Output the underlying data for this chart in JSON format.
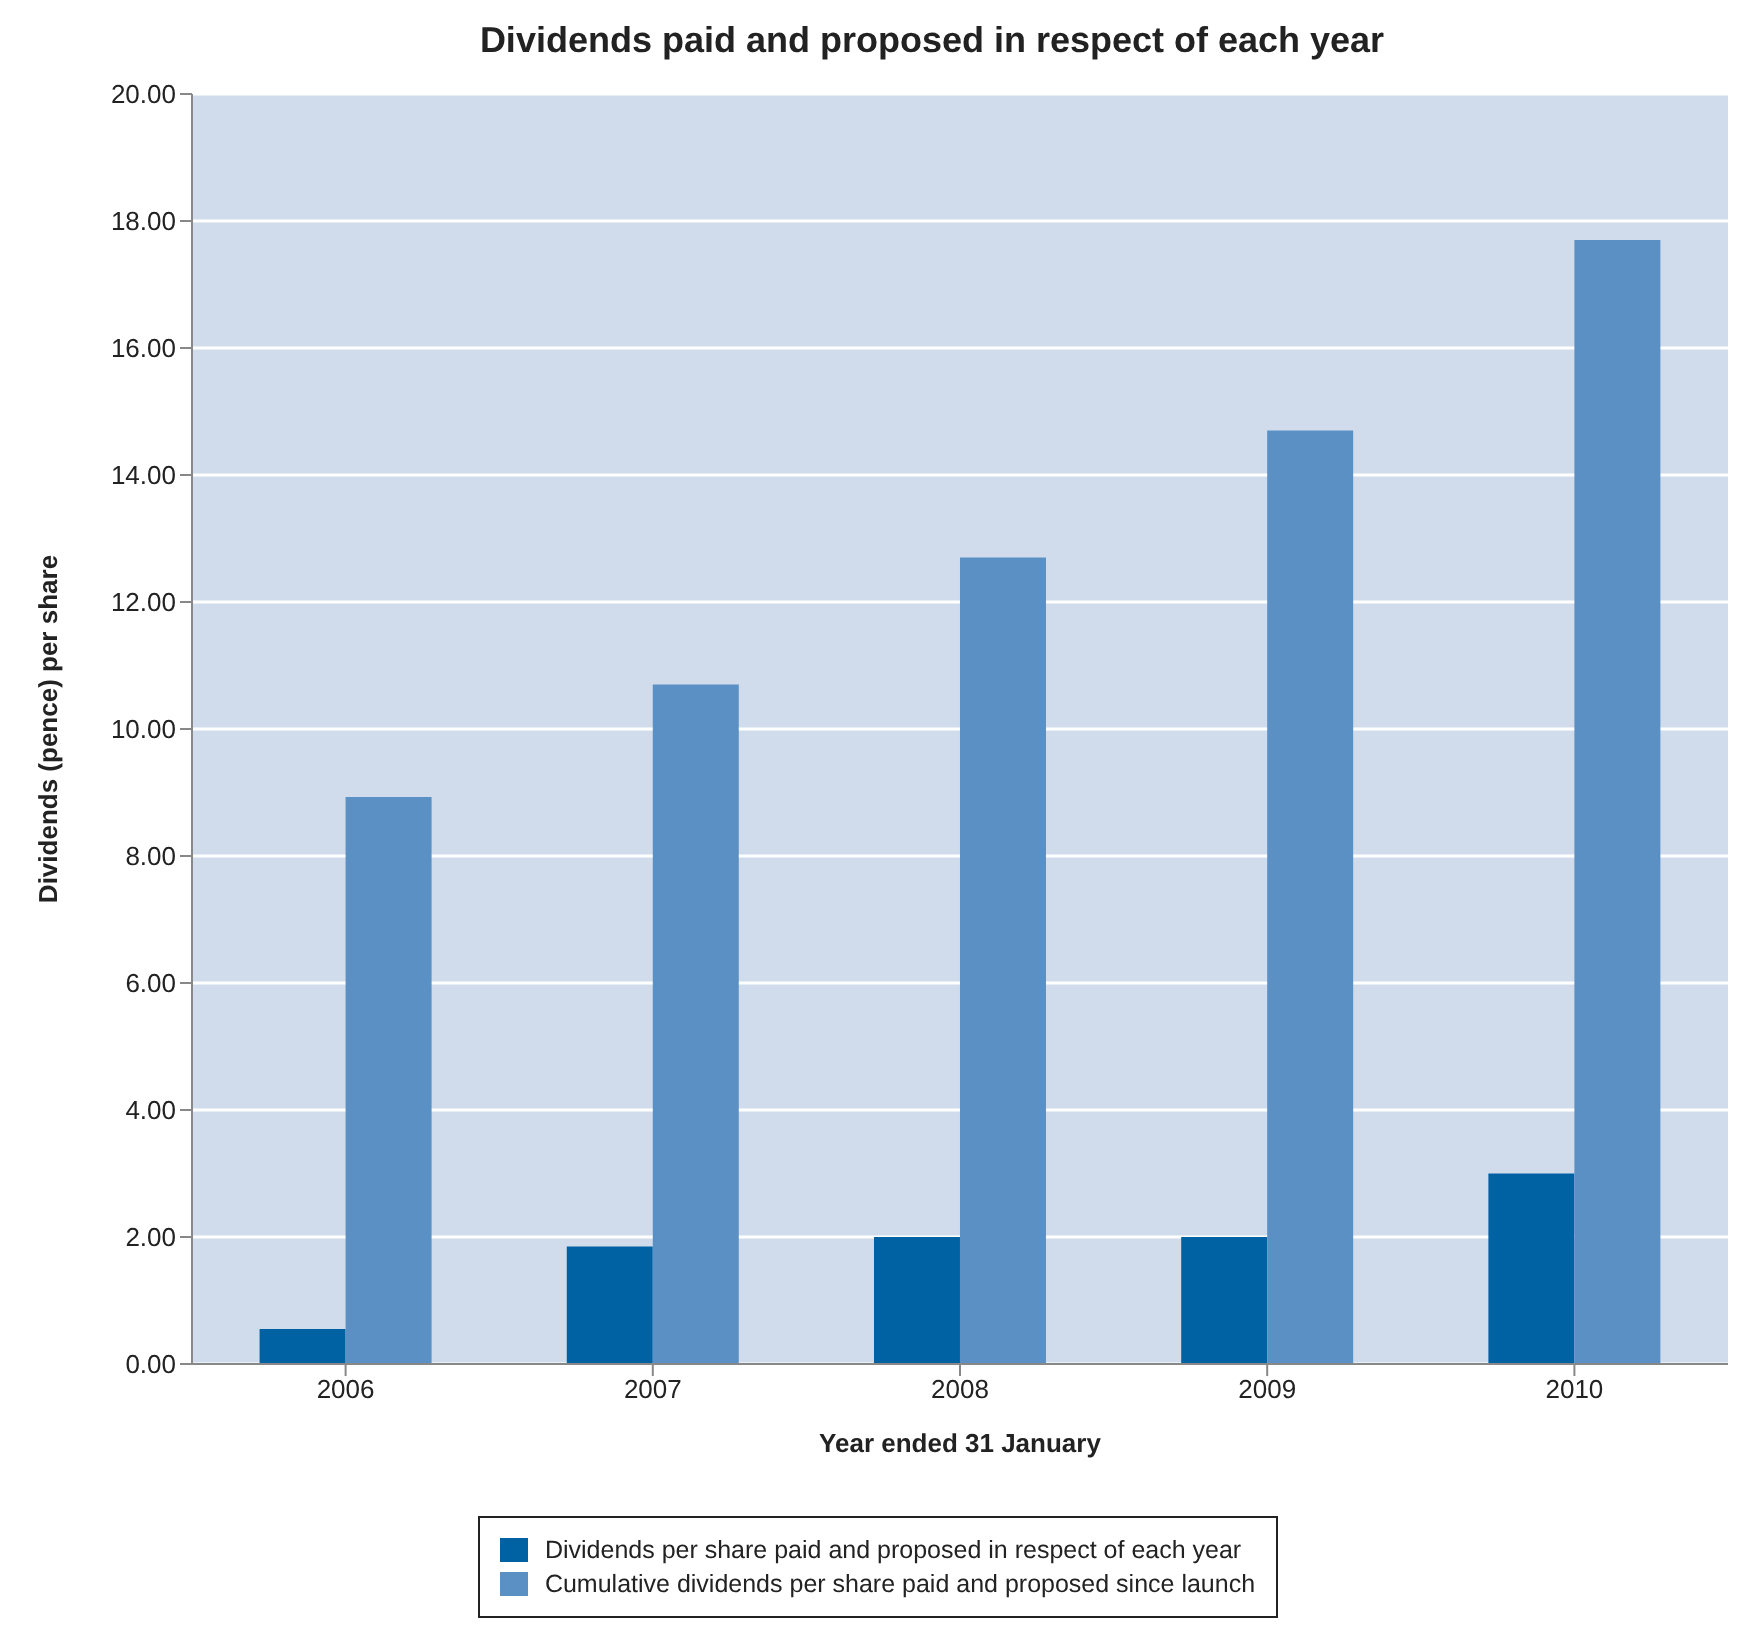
{
  "chart_data": {
    "type": "bar",
    "title": "Dividends paid and proposed in respect of each year",
    "xlabel": "Year ended 31 January",
    "ylabel": "Dividends (pence) per share",
    "categories": [
      "2006",
      "2007",
      "2008",
      "2009",
      "2010"
    ],
    "series": [
      {
        "name": "Dividends per share paid and proposed in respect of each year",
        "color": "#0062a3",
        "values": [
          0.55,
          1.85,
          2.0,
          2.0,
          3.0
        ]
      },
      {
        "name": "Cumulative dividends per share paid and proposed since launch",
        "color": "#5b90c4",
        "values": [
          8.93,
          10.7,
          12.7,
          14.7,
          17.7
        ]
      }
    ],
    "ylim": [
      0,
      20
    ],
    "yticks": [
      {
        "value": 0,
        "label": "0.00"
      },
      {
        "value": 2,
        "label": "2.00"
      },
      {
        "value": 4,
        "label": "4.00"
      },
      {
        "value": 6,
        "label": "6.00"
      },
      {
        "value": 8,
        "label": "8.00"
      },
      {
        "value": 10,
        "label": "10.00"
      },
      {
        "value": 12,
        "label": "12.00"
      },
      {
        "value": 14,
        "label": "14.00"
      },
      {
        "value": 16,
        "label": "16.00"
      },
      {
        "value": 18,
        "label": "18.00"
      },
      {
        "value": 20,
        "label": "20.00"
      }
    ],
    "grid": "y",
    "legend": "bottom"
  }
}
